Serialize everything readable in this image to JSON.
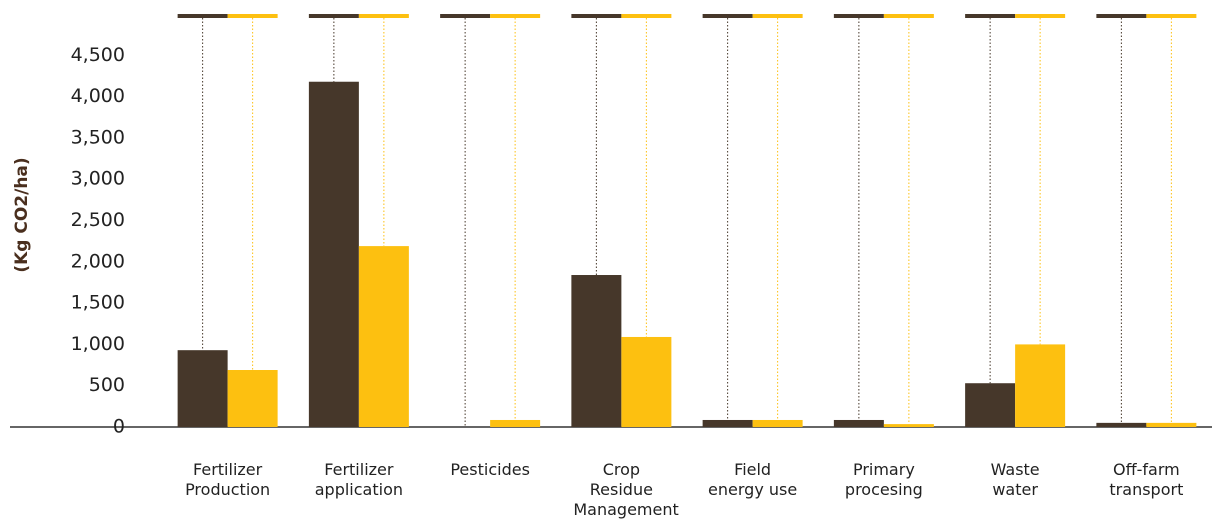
{
  "chart_data": {
    "type": "bar",
    "y_label": "(Kg CO2/ha)",
    "categories": [
      "Fertilizer Production",
      "Fertilizer application",
      "Pesticides",
      "Crop Residue Management",
      "Field energy use",
      "Primary procesing",
      "Waste water",
      "Off-farm transport"
    ],
    "series": [
      {
        "color": "#46372a",
        "values": [
          930,
          4180,
          0,
          1840,
          85,
          85,
          530,
          50
        ]
      },
      {
        "color": "#fdc010",
        "values": [
          690,
          2190,
          85,
          1090,
          85,
          35,
          1000,
          50
        ]
      }
    ],
    "ylim": [
      0,
      5000
    ],
    "yticks": [
      0,
      500,
      {
        "value": 1000,
        "label": "1,000"
      },
      {
        "value": 1500,
        "label": "1,500"
      },
      {
        "value": 2000,
        "label": "2,000"
      },
      {
        "value": 2500,
        "label": "2,500"
      },
      {
        "value": 3000,
        "label": "3,000"
      },
      {
        "value": 3500,
        "label": "3,500"
      },
      {
        "value": 4000,
        "label": "4,000"
      },
      {
        "value": 4500,
        "label": "4,500"
      }
    ],
    "grid": false
  }
}
